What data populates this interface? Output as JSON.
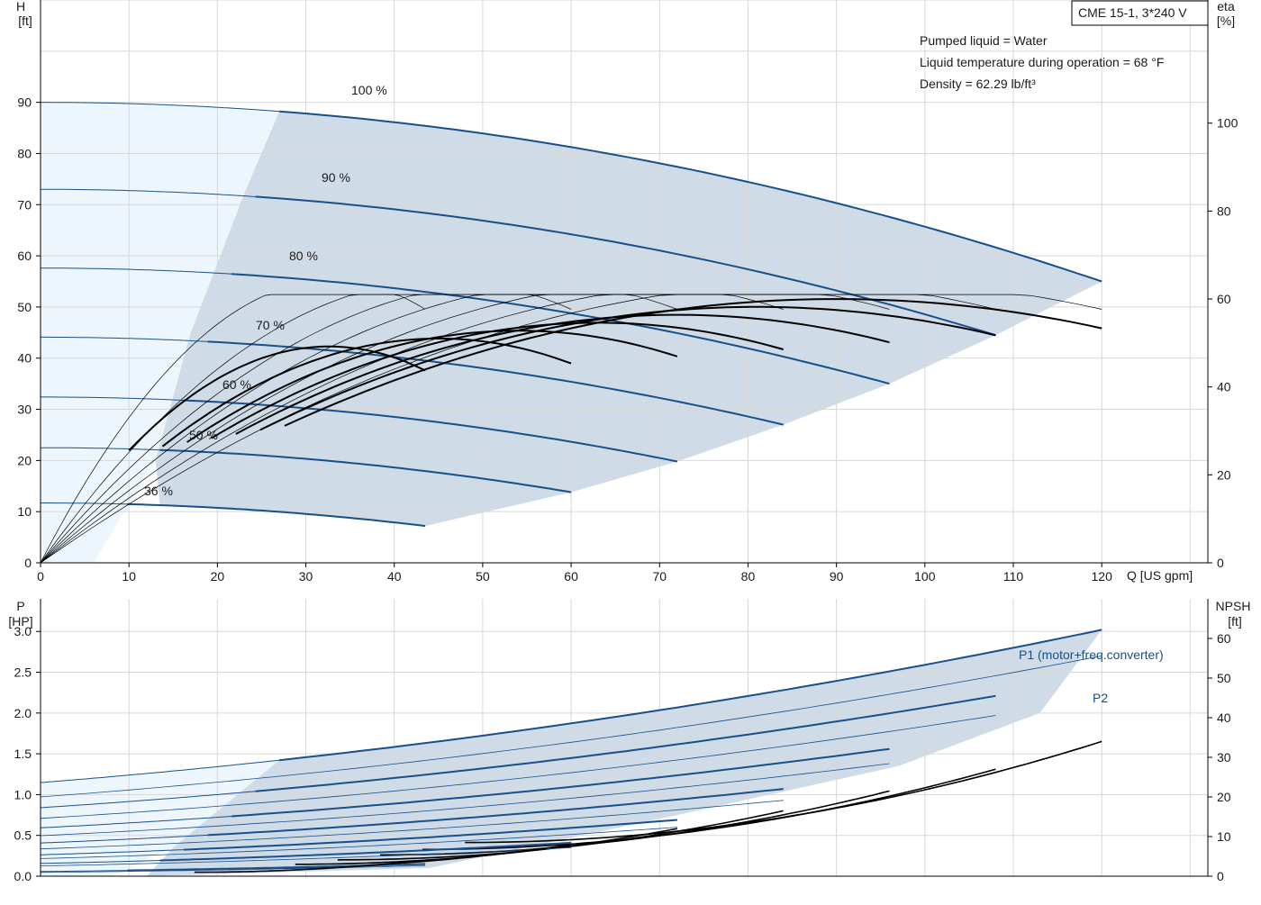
{
  "colors": {
    "curve": "#17508a",
    "black": "#000000",
    "area_dark": "#cfdbe7",
    "area_light": "#eef6fd",
    "grid": "#d7d7d7"
  },
  "info": {
    "model": "CME 15-1, 3*240 V",
    "lines": [
      "Pumped liquid = Water",
      "Liquid temperature during operation = 68 °F",
      "Density = 62.29 lb/ft³"
    ]
  },
  "head_axis": {
    "label1": "H",
    "label2": "[ft]",
    "ticks": [
      0,
      10,
      20,
      30,
      40,
      50,
      60,
      70,
      80,
      90
    ],
    "range": [
      0,
      110
    ]
  },
  "eta_axis": {
    "label1": "eta",
    "label2": "[%]",
    "ticks": [
      0,
      20,
      40,
      60,
      80,
      100
    ]
  },
  "flow_axis": {
    "label": "Q [US gpm]",
    "ticks": [
      0,
      10,
      20,
      30,
      40,
      50,
      60,
      70,
      80,
      90,
      100,
      110,
      120
    ],
    "range": [
      0,
      132
    ]
  },
  "power_axis": {
    "label1": "P",
    "label2": "[HP]",
    "ticks": [
      "0.0",
      "0.5",
      "1.0",
      "1.5",
      "2.0",
      "2.5",
      "3.0"
    ]
  },
  "npsh_axis": {
    "label1": "NPSH",
    "label2": "[ft]",
    "ticks": [
      0,
      10,
      20,
      30,
      40,
      50,
      60
    ]
  },
  "chart_data": [
    {
      "type": "line",
      "xlabel": "Q [US gpm]",
      "ylabel": "H [ft]",
      "y2label": "eta [%]",
      "xlim": [
        0,
        132
      ],
      "ylim": [
        0,
        110
      ],
      "y2lim": [
        0,
        128
      ],
      "series": [
        {
          "name": "100 %",
          "qmax": 120,
          "h0": 90,
          "hend": 55
        },
        {
          "name": "90 %",
          "qmax": 108,
          "h0": 73,
          "hend": 44.5
        },
        {
          "name": "80 %",
          "qmax": 96,
          "h0": 57.6,
          "hend": 35
        },
        {
          "name": "70 %",
          "qmax": 84,
          "h0": 44.1,
          "hend": 27
        },
        {
          "name": "60 %",
          "qmax": 72,
          "h0": 32.4,
          "hend": 19.8
        },
        {
          "name": "50 %",
          "qmax": 60,
          "h0": 22.5,
          "hend": 13.8
        },
        {
          "name": "36 %",
          "qmax": 43.5,
          "h0": 11.7,
          "hend": 7.2
        }
      ],
      "efficiency_max_pct": 61
    },
    {
      "type": "line",
      "xlabel": "Q [US gpm]",
      "ylabel": "P [HP]",
      "y2label": "NPSH [ft]",
      "xlim": [
        0,
        132
      ],
      "ylim": [
        0,
        3.4
      ],
      "y2lim": [
        0,
        70
      ],
      "series": [
        {
          "name": "P1 (motor+freq.converter)",
          "p1_at_qmax": [
            3.02,
            2.21,
            1.56,
            1.07,
            0.69,
            0.41,
            0.15
          ]
        },
        {
          "name": "P2",
          "p2_at_qmax": [
            2.7,
            1.97,
            1.38,
            0.93,
            0.6,
            0.35,
            0.13
          ]
        },
        {
          "npsh_at_qmax_ft": [
            34,
            27,
            21.5,
            16.5,
            12,
            8,
            4
          ]
        }
      ]
    }
  ]
}
